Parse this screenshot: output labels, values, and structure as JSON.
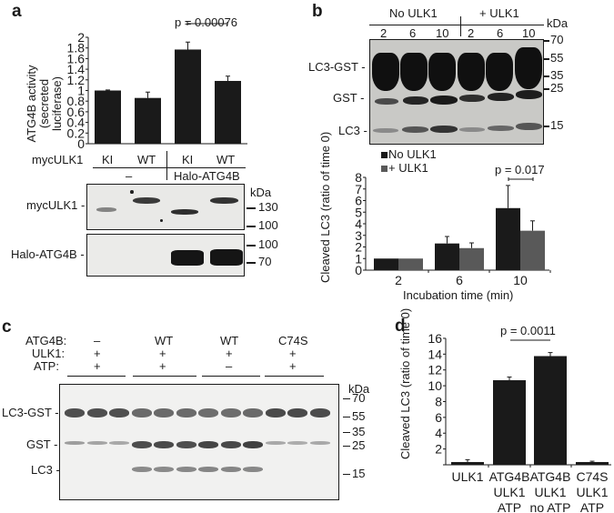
{
  "panels": {
    "a": {
      "label": "a",
      "p_value": "p = 0.00076",
      "row_label": "mycULK1",
      "lane_labels": [
        "KI",
        "WT",
        "KI",
        "WT"
      ],
      "group_labels": [
        "–",
        "Halo-ATG4B"
      ],
      "blot_labels": [
        "mycULK1",
        "Halo-ATG4B"
      ],
      "kda": "kDa",
      "markers_top": [
        "130",
        "100"
      ],
      "markers_bottom": [
        "100",
        "70"
      ]
    },
    "b": {
      "label": "b",
      "groups": [
        "No ULK1",
        "+ ULK1"
      ],
      "lanes": [
        "2",
        "6",
        "10",
        "2",
        "6",
        "10"
      ],
      "kda": "kDa",
      "markers": [
        "70",
        "55",
        "35",
        "25",
        "15"
      ],
      "band_labels": [
        "LC3-GST",
        "GST",
        "LC3"
      ],
      "p_value": "p = 0.017"
    },
    "c": {
      "label": "c",
      "condition_rows": [
        {
          "name": "ATG4B:",
          "values": [
            "–",
            "WT",
            "WT",
            "C74S"
          ]
        },
        {
          "name": "ULK1:",
          "values": [
            "+",
            "+",
            "+",
            "+"
          ]
        },
        {
          "name": "ATP:",
          "values": [
            "+",
            "+",
            "–",
            "+"
          ]
        }
      ],
      "kda": "kDa",
      "markers": [
        "70",
        "55",
        "35",
        "25",
        "15"
      ],
      "band_labels": [
        "LC3-GST",
        "GST",
        "LC3"
      ]
    },
    "d": {
      "label": "d",
      "p_value": "p = 0.0011"
    }
  },
  "chart_data": [
    {
      "panel": "a",
      "type": "bar",
      "title": "",
      "xlabel": "mycULK1",
      "ylabel": "ATG4B activity (secreted luciferase)",
      "categories": [
        "KI (–)",
        "WT (–)",
        "KI (Halo-ATG4B)",
        "WT (Halo-ATG4B)"
      ],
      "values": [
        1.0,
        0.86,
        1.77,
        1.18
      ],
      "error_upper": [
        0.01,
        0.11,
        0.14,
        0.09
      ],
      "ylim": [
        0,
        2
      ],
      "yticks": [
        "0",
        "0.2",
        "0.4",
        "0.6",
        "0.8",
        "1",
        "1.2",
        "1.4",
        "1.6",
        "1.8",
        "2"
      ],
      "annotations": [
        "p = 0.00076 (KI vs WT, Halo-ATG4B)"
      ],
      "grid": false
    },
    {
      "panel": "b",
      "type": "bar",
      "title": "",
      "xlabel": "Incubation time (min)",
      "ylabel": "Cleaved LC3 (ratio of time 0)",
      "categories": [
        "2",
        "6",
        "10"
      ],
      "series": [
        {
          "name": "No ULK1",
          "color": "#1a1a1a",
          "values": [
            1.0,
            2.3,
            5.35
          ],
          "error_upper": [
            0.0,
            0.6,
            1.95
          ]
        },
        {
          "name": "+ ULK1",
          "color": "#595959",
          "values": [
            1.0,
            1.9,
            3.4
          ],
          "error_upper": [
            0.0,
            0.45,
            0.85
          ]
        }
      ],
      "ylim": [
        0,
        8
      ],
      "yticks": [
        "0",
        "1",
        "2",
        "3",
        "4",
        "5",
        "6",
        "7",
        "8"
      ],
      "legend": [
        "No ULK1",
        "+ ULK1"
      ],
      "legend_position": "top-left",
      "annotations": [
        "p = 0.017 (10 min)"
      ],
      "grid": false
    },
    {
      "panel": "d",
      "type": "bar",
      "title": "",
      "xlabel": "",
      "ylabel": "Cleaved LC3 (ratio of time 0)",
      "categories": [
        "ULK1",
        "ATG4B ULK1 ATP",
        "ATG4B ULK1 no ATP",
        "C74S ULK1 ATP"
      ],
      "category_lines": [
        [
          "ULK1"
        ],
        [
          "ATG4B",
          "ULK1",
          "ATP"
        ],
        [
          "ATG4B",
          "ULK1",
          "no ATP"
        ],
        [
          "C74S",
          "ULK1",
          "ATP"
        ]
      ],
      "values": [
        0.35,
        10.7,
        13.75,
        0.35
      ],
      "error_upper": [
        0.3,
        0.4,
        0.45,
        0.1
      ],
      "ylim": [
        0,
        16
      ],
      "yticks": [
        "2",
        "4",
        "6",
        "8",
        "10",
        "12",
        "14",
        "16"
      ],
      "annotations": [
        "p = 0.0011"
      ],
      "grid": false
    }
  ]
}
